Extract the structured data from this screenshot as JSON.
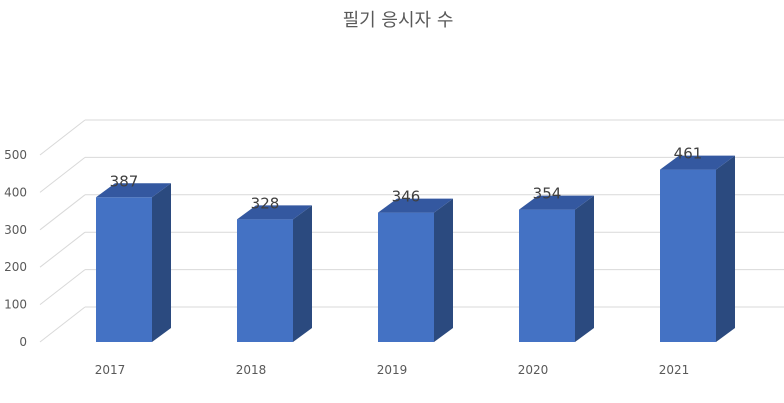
{
  "chart_data": {
    "type": "bar",
    "title": "필기 응시자 수",
    "categories": [
      "2017",
      "2018",
      "2019",
      "2020",
      "2021"
    ],
    "series": [
      {
        "values": [
          387,
          328,
          346,
          354,
          461
        ]
      }
    ],
    "data_labels": [
      "387",
      "328",
      "346",
      "354",
      "461"
    ],
    "xlabel": "",
    "ylabel": "",
    "ylim": [
      0,
      500
    ],
    "yticks": [
      "0",
      "100",
      "200",
      "300",
      "400",
      "500"
    ],
    "grid": true,
    "legend": "none",
    "style": "3d-column",
    "colors": {
      "bar_front": "#4472C4",
      "bar_side": "#2B4A7F",
      "bar_top": "#3458A0",
      "grid": "#D9D9D9",
      "text": "#595959"
    }
  }
}
